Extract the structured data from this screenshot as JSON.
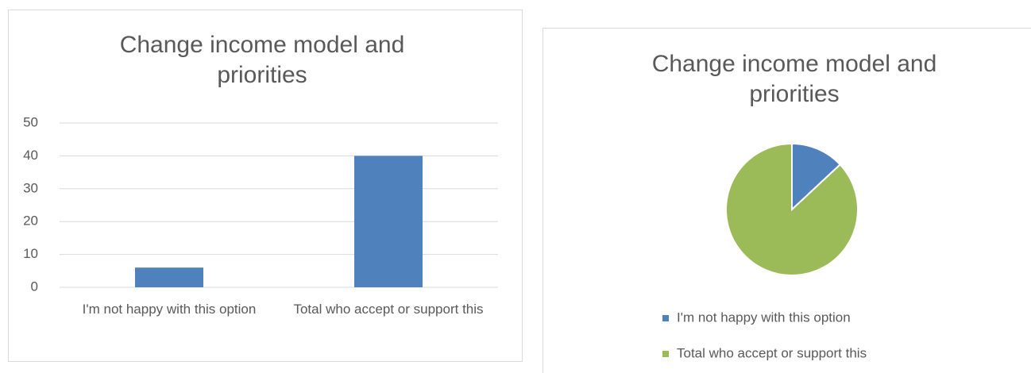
{
  "chart_data": [
    {
      "type": "bar",
      "title": "Change income model and priorities",
      "categories": [
        "I'm not happy with this option",
        "Total who accept or support this"
      ],
      "values": [
        6,
        40
      ],
      "color": "#4f81bd",
      "ylim": [
        0,
        50
      ],
      "yticks": [
        0,
        10,
        20,
        30,
        40,
        50
      ],
      "grid": true
    },
    {
      "type": "pie",
      "title": "Change income model and priorities",
      "categories": [
        "I'm not happy with this option",
        "Total who accept or support this"
      ],
      "values": [
        6,
        40
      ],
      "colors": [
        "#4f81bd",
        "#9bbb59"
      ],
      "legend": "bottom"
    }
  ]
}
